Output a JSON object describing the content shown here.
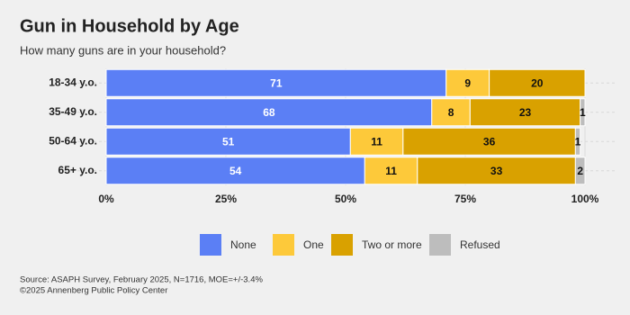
{
  "chart_data": {
    "type": "stacked-bar-horizontal",
    "title": "Gun in Household by Age",
    "subtitle": "How many guns are in your household?",
    "source": "Source: ASAPH Survey, February 2025, N=1716, MOE=+/-3.4%",
    "credit": "©2025 Annenberg Public Policy Center",
    "categories": [
      "18-34 y.o.",
      "35-49 y.o.",
      "50-64 y.o.",
      "65+ y.o."
    ],
    "series": [
      {
        "name": "None",
        "color": "#5b7ff5",
        "values": [
          71,
          68,
          51,
          54
        ]
      },
      {
        "name": "One",
        "color": "#fdc93a",
        "values": [
          9,
          8,
          11,
          11
        ]
      },
      {
        "name": "Two or more",
        "color": "#d9a100",
        "values": [
          20,
          23,
          36,
          33
        ]
      },
      {
        "name": "Refused",
        "color": "#bdbdbd",
        "values": [
          0,
          1,
          1,
          2
        ]
      }
    ],
    "xlim": [
      0,
      100
    ],
    "xticks": [
      {
        "value": 0,
        "label": "0%"
      },
      {
        "value": 25,
        "label": "25%"
      },
      {
        "value": 50,
        "label": "50%"
      },
      {
        "value": 75,
        "label": "75%"
      },
      {
        "value": 100,
        "label": "100%"
      }
    ],
    "grid": true,
    "legend": "bottom"
  }
}
